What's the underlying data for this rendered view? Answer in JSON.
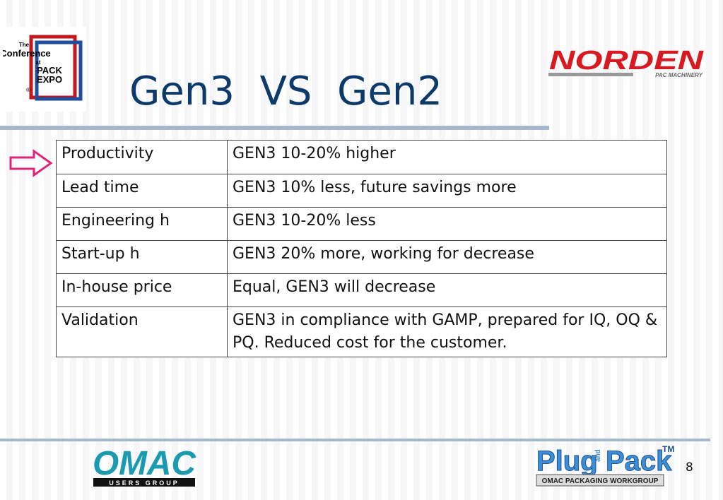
{
  "header": {
    "title": "Gen3  VS  Gen2",
    "logo_left": {
      "line1": "The",
      "line2": "Conference",
      "line3": "at",
      "line4": "PACK",
      "line5": "EXPO",
      "mark": "®"
    },
    "logo_right": {
      "name": "NORDEN",
      "tagline": "PAC MACHINERY"
    }
  },
  "table": {
    "rows": [
      [
        "Productivity",
        "GEN3 10-20% higher"
      ],
      [
        "Lead time",
        "GEN3 10% less, future savings more"
      ],
      [
        "Engineering h",
        "GEN3 10-20% less"
      ],
      [
        "Start-up h",
        "GEN3 20% more, working for decrease"
      ],
      [
        "In-house price",
        "Equal, GEN3 will decrease"
      ],
      [
        "Validation",
        "GEN3 in compliance with GAMP, prepared for IQ, OQ & PQ. Reduced cost for the customer."
      ]
    ]
  },
  "footer": {
    "omac": {
      "name": "OMAC",
      "tagline": "USERS GROUP"
    },
    "plugpack": {
      "plug": "Plug",
      "and": "and",
      "pack": "Pack",
      "tm": "TM",
      "tagline": "OMAC PACKAGING WORKGROUP"
    },
    "page_number": "8"
  }
}
